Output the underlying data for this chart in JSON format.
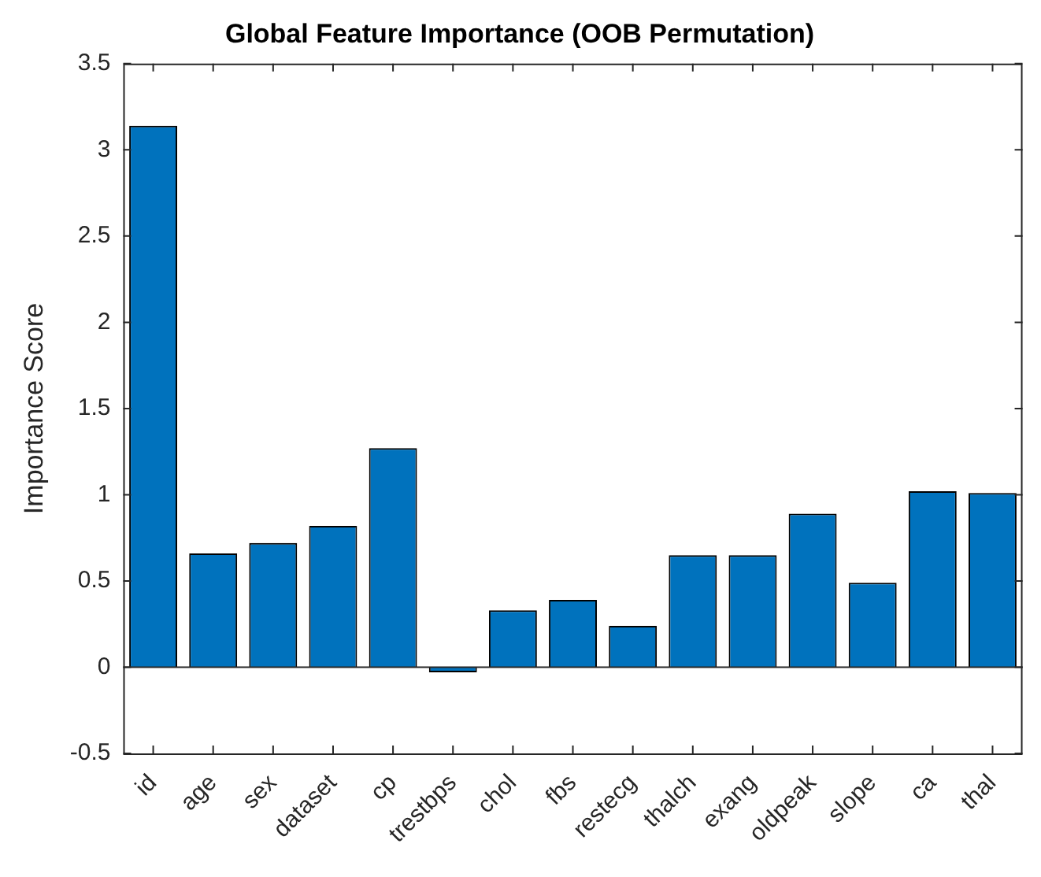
{
  "chart_data": {
    "type": "bar",
    "title": "Global Feature Importance (OOB Permutation)",
    "ylabel": "Importance Score",
    "categories": [
      "id",
      "age",
      "sex",
      "dataset",
      "cp",
      "trestbps",
      "chol",
      "fbs",
      "restecg",
      "thalch",
      "exang",
      "oldpeak",
      "slope",
      "ca",
      "thal"
    ],
    "values": [
      3.14,
      0.66,
      0.72,
      0.82,
      1.27,
      -0.03,
      0.33,
      0.39,
      0.24,
      0.65,
      0.65,
      0.89,
      0.49,
      1.02,
      1.01
    ],
    "color": "#0072bd",
    "ylim": [
      -0.5,
      3.5
    ],
    "yticks": [
      -0.5,
      0,
      0.5,
      1,
      1.5,
      2,
      2.5,
      3,
      3.5
    ],
    "grid": false,
    "ref_lines": [
      {
        "axis": "y",
        "value": 0,
        "color": "#262626"
      }
    ]
  }
}
